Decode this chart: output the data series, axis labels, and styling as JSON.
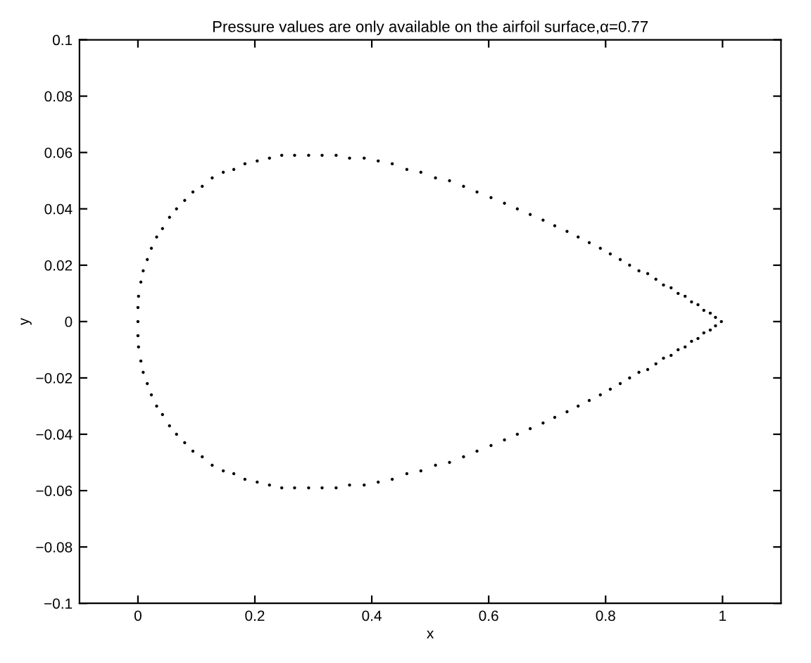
{
  "chart_data": {
    "type": "scatter",
    "title": "Pressure values are only available on the airfoil surface,α=0.77",
    "xlabel": "x",
    "ylabel": "y",
    "xlim": [
      -0.1,
      1.1
    ],
    "xticks": [
      0,
      0.2,
      0.4,
      0.6,
      0.8,
      1
    ],
    "ylim": [
      -0.1,
      0.1
    ],
    "yticks": [
      {
        "value": -0.1,
        "label": "−0.1"
      },
      {
        "value": -0.08,
        "label": "−0.08"
      },
      {
        "value": -0.06,
        "label": "−0.06"
      },
      {
        "value": -0.04,
        "label": "−0.04"
      },
      {
        "value": -0.02,
        "label": "−0.02"
      },
      0,
      0.02,
      0.04,
      0.06,
      0.08,
      0.1
    ],
    "grid": false,
    "marker": "circle",
    "series": [
      {
        "color": "#000000",
        "x": [
          0.0,
          0.0,
          0.001,
          0.005,
          0.009,
          0.016,
          0.023,
          0.032,
          0.042,
          0.054,
          0.066,
          0.08,
          0.094,
          0.11,
          0.127,
          0.146,
          0.164,
          0.183,
          0.204,
          0.225,
          0.246,
          0.268,
          0.292,
          0.315,
          0.339,
          0.362,
          0.387,
          0.411,
          0.435,
          0.46,
          0.484,
          0.509,
          0.533,
          0.557,
          0.58,
          0.604,
          0.627,
          0.649,
          0.671,
          0.693,
          0.713,
          0.734,
          0.753,
          0.772,
          0.791,
          0.808,
          0.825,
          0.841,
          0.857,
          0.872,
          0.886,
          0.899,
          0.912,
          0.924,
          0.936,
          0.947,
          0.958,
          0.968,
          0.979,
          0.988,
          0.998,
          0.0,
          0.001,
          0.005,
          0.009,
          0.016,
          0.023,
          0.032,
          0.042,
          0.054,
          0.066,
          0.08,
          0.094,
          0.11,
          0.127,
          0.146,
          0.164,
          0.183,
          0.204,
          0.225,
          0.246,
          0.268,
          0.292,
          0.315,
          0.339,
          0.362,
          0.387,
          0.411,
          0.435,
          0.46,
          0.484,
          0.509,
          0.533,
          0.557,
          0.58,
          0.604,
          0.627,
          0.649,
          0.671,
          0.693,
          0.713,
          0.734,
          0.753,
          0.772,
          0.791,
          0.808,
          0.825,
          0.841,
          0.857,
          0.872,
          0.886,
          0.899,
          0.912,
          0.924,
          0.936,
          0.947,
          0.958,
          0.968,
          0.979,
          0.988
        ],
        "values": [
          0.0,
          0.005,
          0.009,
          0.014,
          0.018,
          0.022,
          0.026,
          0.03,
          0.033,
          0.037,
          0.04,
          0.043,
          0.046,
          0.048,
          0.051,
          0.053,
          0.054,
          0.056,
          0.057,
          0.058,
          0.059,
          0.059,
          0.059,
          0.059,
          0.059,
          0.058,
          0.058,
          0.057,
          0.056,
          0.054,
          0.053,
          0.051,
          0.05,
          0.048,
          0.046,
          0.044,
          0.042,
          0.04,
          0.038,
          0.036,
          0.034,
          0.032,
          0.03,
          0.028,
          0.026,
          0.024,
          0.022,
          0.02,
          0.018,
          0.017,
          0.015,
          0.013,
          0.012,
          0.01,
          0.009,
          0.007,
          0.006,
          0.004,
          0.003,
          0.0015,
          0.0,
          -0.005,
          -0.009,
          -0.014,
          -0.018,
          -0.022,
          -0.026,
          -0.03,
          -0.033,
          -0.037,
          -0.04,
          -0.043,
          -0.046,
          -0.048,
          -0.051,
          -0.053,
          -0.054,
          -0.056,
          -0.057,
          -0.058,
          -0.059,
          -0.059,
          -0.059,
          -0.059,
          -0.059,
          -0.058,
          -0.058,
          -0.057,
          -0.056,
          -0.054,
          -0.053,
          -0.051,
          -0.05,
          -0.048,
          -0.046,
          -0.044,
          -0.042,
          -0.04,
          -0.038,
          -0.036,
          -0.034,
          -0.032,
          -0.03,
          -0.028,
          -0.026,
          -0.024,
          -0.022,
          -0.02,
          -0.018,
          -0.017,
          -0.015,
          -0.013,
          -0.012,
          -0.01,
          -0.009,
          -0.007,
          -0.006,
          -0.004,
          -0.003,
          -0.0015
        ]
      }
    ]
  }
}
